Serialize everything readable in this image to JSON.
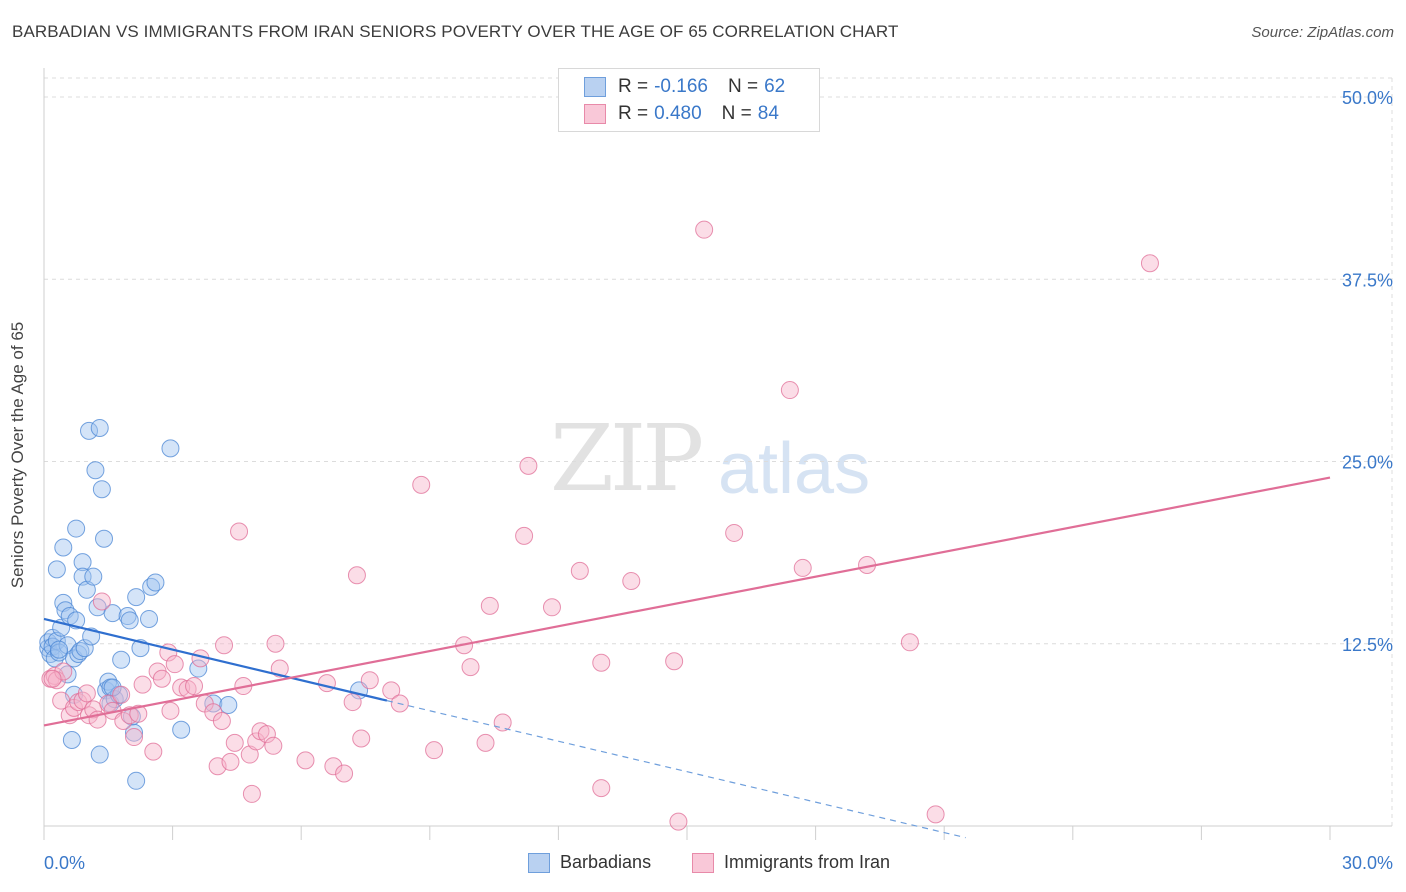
{
  "title": "BARBADIAN VS IMMIGRANTS FROM IRAN SENIORS POVERTY OVER THE AGE OF 65 CORRELATION CHART",
  "source_prefix": "Source: ",
  "source_name": "ZipAtlas.com",
  "watermark_zip": "ZIP",
  "watermark_atlas": "atlas",
  "legend": {
    "rows": [
      {
        "r_label": "R =",
        "r_value": "-0.166",
        "n_label": "N =",
        "n_value": "62",
        "fill": "#b9d1f1",
        "stroke": "#6f9fdc"
      },
      {
        "r_label": "R =",
        "r_value": "0.480",
        "n_label": "N =",
        "n_value": "84",
        "fill": "#f9c8d8",
        "stroke": "#e88aa9"
      }
    ]
  },
  "bottom_legend": [
    {
      "label": "Barbadians",
      "fill": "#b9d1f1",
      "stroke": "#6f9fdc"
    },
    {
      "label": "Immigrants from Iran",
      "fill": "#f9c8d8",
      "stroke": "#e88aa9"
    }
  ],
  "chart_data": {
    "type": "scatter",
    "title": "BARBADIAN VS IMMIGRANTS FROM IRAN SENIORS POVERTY OVER THE AGE OF 65 CORRELATION CHART",
    "xlabel": "",
    "ylabel": "Seniors Poverty Over the Age of 65",
    "xlim": [
      0,
      30
    ],
    "ylim": [
      0,
      50
    ],
    "x_tick_labels": [
      {
        "v": 0,
        "t": "0.0%"
      },
      {
        "v": 30,
        "t": "30.0%"
      }
    ],
    "y_tick_labels": [
      {
        "v": 12.5,
        "t": "12.5%"
      },
      {
        "v": 25,
        "t": "25.0%"
      },
      {
        "v": 37.5,
        "t": "37.5%"
      },
      {
        "v": 50,
        "t": "50.0%"
      }
    ],
    "grid": true,
    "series": [
      {
        "name": "Barbadians",
        "color": "#4a86d4",
        "fill": "rgba(160,195,240,0.45)",
        "points": [
          [
            0.1,
            12.2
          ],
          [
            0.1,
            12.6
          ],
          [
            0.15,
            11.8
          ],
          [
            0.2,
            12.9
          ],
          [
            0.2,
            12.3
          ],
          [
            0.25,
            11.5
          ],
          [
            0.3,
            12.7
          ],
          [
            0.3,
            17.6
          ],
          [
            0.35,
            11.9
          ],
          [
            0.4,
            13.6
          ],
          [
            0.45,
            19.1
          ],
          [
            0.45,
            15.3
          ],
          [
            0.5,
            14.8
          ],
          [
            0.55,
            12.4
          ],
          [
            0.55,
            10.4
          ],
          [
            0.6,
            14.4
          ],
          [
            0.65,
            5.9
          ],
          [
            0.7,
            11.5
          ],
          [
            0.7,
            9.0
          ],
          [
            0.75,
            14.1
          ],
          [
            0.75,
            20.4
          ],
          [
            0.8,
            11.8
          ],
          [
            0.85,
            12.0
          ],
          [
            0.9,
            18.1
          ],
          [
            0.9,
            17.1
          ],
          [
            0.95,
            12.2
          ],
          [
            1.0,
            16.2
          ],
          [
            1.05,
            27.1
          ],
          [
            1.1,
            13.0
          ],
          [
            1.15,
            17.1
          ],
          [
            1.2,
            24.4
          ],
          [
            1.25,
            15.0
          ],
          [
            1.3,
            27.3
          ],
          [
            1.3,
            4.9
          ],
          [
            1.35,
            23.1
          ],
          [
            1.4,
            19.7
          ],
          [
            1.45,
            9.3
          ],
          [
            1.5,
            9.9
          ],
          [
            1.55,
            9.5
          ],
          [
            1.55,
            8.4
          ],
          [
            1.6,
            14.6
          ],
          [
            1.65,
            8.7
          ],
          [
            1.75,
            9.0
          ],
          [
            1.8,
            11.4
          ],
          [
            1.95,
            14.4
          ],
          [
            2.0,
            14.1
          ],
          [
            2.05,
            7.5
          ],
          [
            2.1,
            6.4
          ],
          [
            2.15,
            3.1
          ],
          [
            2.15,
            15.7
          ],
          [
            2.25,
            12.2
          ],
          [
            2.45,
            14.2
          ],
          [
            2.5,
            16.4
          ],
          [
            2.6,
            16.7
          ],
          [
            2.95,
            25.9
          ],
          [
            3.2,
            6.6
          ],
          [
            3.6,
            10.8
          ],
          [
            3.95,
            8.4
          ],
          [
            4.3,
            8.3
          ],
          [
            7.35,
            9.3
          ],
          [
            1.6,
            9.5
          ],
          [
            0.35,
            12.1
          ]
        ]
      },
      {
        "name": "Immigrants from Iran",
        "color": "#e06e97",
        "fill": "rgba(246,180,202,0.45)",
        "points": [
          [
            0.15,
            10.1
          ],
          [
            0.25,
            10.3
          ],
          [
            0.3,
            10.0
          ],
          [
            0.4,
            8.6
          ],
          [
            0.45,
            10.6
          ],
          [
            0.6,
            7.6
          ],
          [
            0.7,
            8.1
          ],
          [
            0.8,
            8.5
          ],
          [
            0.9,
            8.6
          ],
          [
            1.0,
            9.1
          ],
          [
            1.05,
            7.6
          ],
          [
            1.15,
            8.0
          ],
          [
            1.25,
            7.3
          ],
          [
            1.35,
            15.4
          ],
          [
            1.5,
            8.4
          ],
          [
            1.6,
            7.9
          ],
          [
            1.8,
            9.0
          ],
          [
            1.85,
            7.2
          ],
          [
            2.0,
            7.6
          ],
          [
            2.1,
            6.1
          ],
          [
            2.2,
            7.7
          ],
          [
            2.3,
            9.7
          ],
          [
            2.55,
            5.1
          ],
          [
            2.65,
            10.6
          ],
          [
            2.75,
            10.1
          ],
          [
            2.9,
            11.9
          ],
          [
            2.95,
            7.9
          ],
          [
            3.05,
            11.1
          ],
          [
            3.2,
            9.5
          ],
          [
            3.35,
            9.4
          ],
          [
            3.5,
            9.6
          ],
          [
            3.65,
            11.5
          ],
          [
            3.75,
            8.4
          ],
          [
            3.95,
            7.8
          ],
          [
            4.05,
            4.1
          ],
          [
            4.15,
            7.2
          ],
          [
            4.2,
            12.4
          ],
          [
            4.35,
            4.4
          ],
          [
            4.45,
            5.7
          ],
          [
            4.55,
            20.2
          ],
          [
            4.65,
            9.6
          ],
          [
            4.8,
            4.9
          ],
          [
            4.85,
            2.2
          ],
          [
            4.95,
            5.8
          ],
          [
            5.05,
            6.5
          ],
          [
            5.2,
            6.3
          ],
          [
            5.35,
            5.5
          ],
          [
            5.4,
            12.5
          ],
          [
            5.5,
            10.8
          ],
          [
            6.1,
            4.5
          ],
          [
            6.6,
            9.8
          ],
          [
            6.75,
            4.1
          ],
          [
            7.0,
            3.6
          ],
          [
            7.2,
            8.5
          ],
          [
            7.3,
            17.2
          ],
          [
            7.4,
            6.0
          ],
          [
            7.6,
            10.0
          ],
          [
            8.1,
            9.3
          ],
          [
            8.3,
            8.4
          ],
          [
            8.8,
            23.4
          ],
          [
            9.1,
            5.2
          ],
          [
            9.8,
            12.4
          ],
          [
            9.95,
            10.9
          ],
          [
            10.3,
            5.7
          ],
          [
            10.4,
            15.1
          ],
          [
            10.7,
            7.1
          ],
          [
            11.2,
            19.9
          ],
          [
            11.3,
            24.7
          ],
          [
            11.85,
            15.0
          ],
          [
            12.5,
            17.5
          ],
          [
            13.0,
            2.6
          ],
          [
            13.0,
            11.2
          ],
          [
            13.7,
            16.8
          ],
          [
            14.7,
            11.3
          ],
          [
            14.8,
            0.3
          ],
          [
            15.4,
            40.9
          ],
          [
            16.1,
            20.1
          ],
          [
            17.4,
            29.9
          ],
          [
            17.7,
            17.7
          ],
          [
            19.2,
            17.9
          ],
          [
            20.2,
            12.6
          ],
          [
            20.8,
            0.8
          ],
          [
            25.8,
            38.6
          ],
          [
            0.2,
            10.1
          ]
        ]
      }
    ],
    "trend_lines": [
      {
        "series": "Barbadians",
        "solid": [
          [
            0,
            14.2
          ],
          [
            8.0,
            8.6
          ]
        ],
        "dashed": [
          [
            8.0,
            8.6
          ],
          [
            21.5,
            -0.8
          ]
        ]
      },
      {
        "series": "Immigrants from Iran",
        "solid": [
          [
            0,
            6.9
          ],
          [
            30,
            23.9
          ]
        ]
      }
    ]
  }
}
